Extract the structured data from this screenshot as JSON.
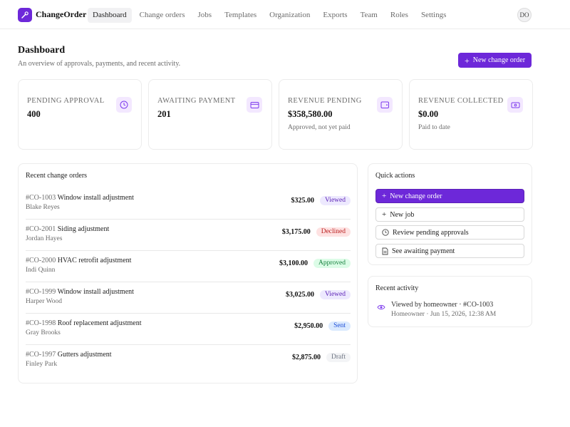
{
  "app": {
    "brand": "ChangeOrder",
    "nav": [
      "Dashboard",
      "Change orders",
      "Jobs",
      "Templates",
      "Organization",
      "Exports",
      "Team",
      "Roles",
      "Settings"
    ],
    "active_nav": "Dashboard",
    "avatar_initials": "DO"
  },
  "header": {
    "title": "Dashboard",
    "subtitle": "An overview of approvals, payments, and recent activity.",
    "new_button": "New change order"
  },
  "stats": [
    {
      "label": "Pending approval",
      "value": "400",
      "sub": "",
      "icon": "clock-icon"
    },
    {
      "label": "Awaiting payment",
      "value": "201",
      "sub": "",
      "icon": "credit-card-icon"
    },
    {
      "label": "Revenue pending",
      "value": "$358,580.00",
      "sub": "Approved, not yet paid",
      "icon": "wallet-icon"
    },
    {
      "label": "Revenue collected",
      "value": "$0.00",
      "sub": "Paid to date",
      "icon": "cash-icon"
    }
  ],
  "recent_orders": {
    "title": "Recent change orders",
    "rows": [
      {
        "id": "#CO-1003",
        "name": "Window install adjustment",
        "customer": "Blake Reyes",
        "amount": "$325.00",
        "status": "Viewed"
      },
      {
        "id": "#CO-2001",
        "name": "Siding adjustment",
        "customer": "Jordan Hayes",
        "amount": "$3,175.00",
        "status": "Declined"
      },
      {
        "id": "#CO-2000",
        "name": "HVAC retrofit adjustment",
        "customer": "Indi Quinn",
        "amount": "$3,100.00",
        "status": "Approved"
      },
      {
        "id": "#CO-1999",
        "name": "Window install adjustment",
        "customer": "Harper Wood",
        "amount": "$3,025.00",
        "status": "Viewed"
      },
      {
        "id": "#CO-1998",
        "name": "Roof replacement adjustment",
        "customer": "Gray Brooks",
        "amount": "$2,950.00",
        "status": "Sent"
      },
      {
        "id": "#CO-1997",
        "name": "Gutters adjustment",
        "customer": "Finley Park",
        "amount": "$2,875.00",
        "status": "Draft"
      }
    ]
  },
  "quick_actions": {
    "title": "Quick actions",
    "items": [
      {
        "label": "New change order",
        "icon": "plus-icon"
      },
      {
        "label": "New job",
        "icon": "plus-icon"
      },
      {
        "label": "Review pending approvals",
        "icon": "clock-icon"
      },
      {
        "label": "See awaiting payment",
        "icon": "document-icon"
      }
    ]
  },
  "recent_activity": {
    "title": "Recent activity",
    "items": [
      {
        "title": "Viewed by homeowner · #CO-1003",
        "meta": "Homeowner · Jun 15, 2026, 12:38 AM",
        "icon": "eye-icon"
      }
    ]
  },
  "colors": {
    "accent": "#6d28d9",
    "accent_light": "#f3e8ff"
  }
}
